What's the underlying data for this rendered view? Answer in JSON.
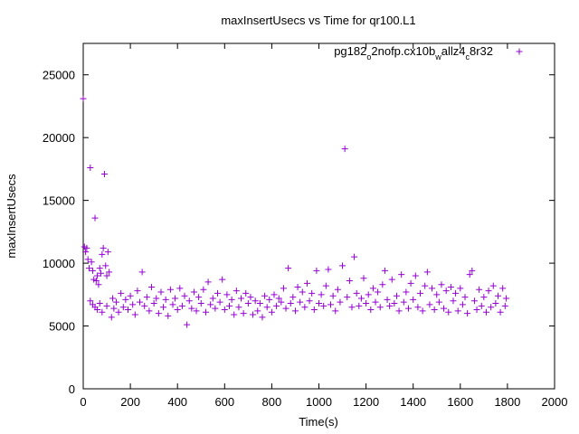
{
  "chart_data": {
    "type": "scatter",
    "title": "maxInsertUsecs vs Time for qr100.L1",
    "xlabel": "Time(s)",
    "ylabel": "maxInsertUsecs",
    "xlim": [
      0,
      2000
    ],
    "ylim": [
      0,
      27500
    ],
    "xticks": [
      0,
      200,
      400,
      600,
      800,
      1000,
      1200,
      1400,
      1600,
      1800,
      2000
    ],
    "yticks": [
      0,
      5000,
      10000,
      15000,
      20000,
      25000
    ],
    "legend_position": "top-right",
    "grid": false,
    "marker": "+",
    "series": [
      {
        "name": "pg182_o2nofp.cx10b_wallz4_c8r32",
        "legend_parts": [
          {
            "text": "pg182",
            "sub": false
          },
          {
            "text": "o",
            "sub": true
          },
          {
            "text": "2nofp.cx10b",
            "sub": false
          },
          {
            "text": "w",
            "sub": true
          },
          {
            "text": "allz4",
            "sub": false
          },
          {
            "text": "c",
            "sub": true
          },
          {
            "text": "8r32",
            "sub": false
          }
        ],
        "color": "#9400d3",
        "points": [
          [
            0,
            23100
          ],
          [
            5,
            11300
          ],
          [
            10,
            10900
          ],
          [
            15,
            11200
          ],
          [
            20,
            10300
          ],
          [
            25,
            9600
          ],
          [
            30,
            17600
          ],
          [
            35,
            10100
          ],
          [
            40,
            9400
          ],
          [
            45,
            8700
          ],
          [
            50,
            13600
          ],
          [
            55,
            8600
          ],
          [
            60,
            9000
          ],
          [
            65,
            8300
          ],
          [
            70,
            9600
          ],
          [
            75,
            9200
          ],
          [
            80,
            10700
          ],
          [
            85,
            11200
          ],
          [
            90,
            17100
          ],
          [
            95,
            9800
          ],
          [
            100,
            9000
          ],
          [
            105,
            10900
          ],
          [
            110,
            9300
          ],
          [
            30,
            7000
          ],
          [
            40,
            6700
          ],
          [
            50,
            6500
          ],
          [
            60,
            6300
          ],
          [
            70,
            6800
          ],
          [
            80,
            6100
          ],
          [
            100,
            6600
          ],
          [
            120,
            5700
          ],
          [
            125,
            7200
          ],
          [
            130,
            6400
          ],
          [
            140,
            6900
          ],
          [
            150,
            6100
          ],
          [
            160,
            7600
          ],
          [
            170,
            6500
          ],
          [
            180,
            7100
          ],
          [
            190,
            6300
          ],
          [
            200,
            7400
          ],
          [
            210,
            6700
          ],
          [
            220,
            5900
          ],
          [
            230,
            7800
          ],
          [
            240,
            6900
          ],
          [
            250,
            9300
          ],
          [
            260,
            6600
          ],
          [
            270,
            7300
          ],
          [
            280,
            6200
          ],
          [
            290,
            8100
          ],
          [
            300,
            6800
          ],
          [
            310,
            7200
          ],
          [
            320,
            6000
          ],
          [
            330,
            7700
          ],
          [
            340,
            6500
          ],
          [
            350,
            7100
          ],
          [
            360,
            5800
          ],
          [
            370,
            7900
          ],
          [
            380,
            6700
          ],
          [
            390,
            7200
          ],
          [
            400,
            6300
          ],
          [
            410,
            8000
          ],
          [
            420,
            6600
          ],
          [
            430,
            7400
          ],
          [
            440,
            5100
          ],
          [
            450,
            7000
          ],
          [
            460,
            6400
          ],
          [
            470,
            7700
          ],
          [
            480,
            6200
          ],
          [
            490,
            7300
          ],
          [
            500,
            6800
          ],
          [
            510,
            7900
          ],
          [
            520,
            6100
          ],
          [
            530,
            8500
          ],
          [
            540,
            6700
          ],
          [
            550,
            7200
          ],
          [
            560,
            6400
          ],
          [
            570,
            7600
          ],
          [
            580,
            6900
          ],
          [
            590,
            8700
          ],
          [
            600,
            6300
          ],
          [
            610,
            7500
          ],
          [
            620,
            6600
          ],
          [
            630,
            7100
          ],
          [
            640,
            5900
          ],
          [
            650,
            7800
          ],
          [
            660,
            6500
          ],
          [
            670,
            7200
          ],
          [
            680,
            6000
          ],
          [
            690,
            7600
          ],
          [
            700,
            6800
          ],
          [
            710,
            7300
          ],
          [
            720,
            5900
          ],
          [
            730,
            7000
          ],
          [
            740,
            6200
          ],
          [
            750,
            6800
          ],
          [
            760,
            5700
          ],
          [
            770,
            7400
          ],
          [
            780,
            6500
          ],
          [
            790,
            7100
          ],
          [
            800,
            6100
          ],
          [
            810,
            7500
          ],
          [
            820,
            6600
          ],
          [
            830,
            7200
          ],
          [
            840,
            6900
          ],
          [
            850,
            8000
          ],
          [
            860,
            6400
          ],
          [
            870,
            9600
          ],
          [
            880,
            6800
          ],
          [
            890,
            7300
          ],
          [
            900,
            6200
          ],
          [
            910,
            8100
          ],
          [
            920,
            6900
          ],
          [
            930,
            7700
          ],
          [
            940,
            6500
          ],
          [
            950,
            8400
          ],
          [
            960,
            7000
          ],
          [
            970,
            7600
          ],
          [
            980,
            6300
          ],
          [
            990,
            9400
          ],
          [
            1000,
            6800
          ],
          [
            1010,
            7500
          ],
          [
            1020,
            6600
          ],
          [
            1030,
            8200
          ],
          [
            1040,
            9500
          ],
          [
            1050,
            6700
          ],
          [
            1060,
            7400
          ],
          [
            1070,
            6200
          ],
          [
            1080,
            7900
          ],
          [
            1090,
            6900
          ],
          [
            1100,
            9800
          ],
          [
            1110,
            19100
          ],
          [
            1120,
            7300
          ],
          [
            1130,
            8600
          ],
          [
            1140,
            6500
          ],
          [
            1150,
            10500
          ],
          [
            1160,
            7600
          ],
          [
            1170,
            6600
          ],
          [
            1180,
            7200
          ],
          [
            1190,
            8800
          ],
          [
            1200,
            6800
          ],
          [
            1210,
            7500
          ],
          [
            1220,
            6300
          ],
          [
            1230,
            8000
          ],
          [
            1240,
            6900
          ],
          [
            1250,
            7700
          ],
          [
            1260,
            6500
          ],
          [
            1270,
            8300
          ],
          [
            1280,
            9400
          ],
          [
            1290,
            7100
          ],
          [
            1300,
            6600
          ],
          [
            1310,
            8700
          ],
          [
            1320,
            6800
          ],
          [
            1330,
            7400
          ],
          [
            1340,
            6200
          ],
          [
            1350,
            9100
          ],
          [
            1360,
            6900
          ],
          [
            1370,
            7700
          ],
          [
            1380,
            6400
          ],
          [
            1390,
            8400
          ],
          [
            1400,
            7100
          ],
          [
            1410,
            9000
          ],
          [
            1420,
            6500
          ],
          [
            1430,
            7600
          ],
          [
            1440,
            6200
          ],
          [
            1450,
            8200
          ],
          [
            1460,
            9300
          ],
          [
            1470,
            6700
          ],
          [
            1480,
            8000
          ],
          [
            1490,
            6300
          ],
          [
            1500,
            7500
          ],
          [
            1510,
            6900
          ],
          [
            1520,
            8300
          ],
          [
            1530,
            6400
          ],
          [
            1540,
            7800
          ],
          [
            1550,
            6100
          ],
          [
            1560,
            8100
          ],
          [
            1570,
            7000
          ],
          [
            1580,
            7600
          ],
          [
            1590,
            6200
          ],
          [
            1600,
            8000
          ],
          [
            1610,
            6700
          ],
          [
            1620,
            7300
          ],
          [
            1630,
            6000
          ],
          [
            1640,
            9100
          ],
          [
            1650,
            9400
          ],
          [
            1660,
            7000
          ],
          [
            1670,
            6300
          ],
          [
            1680,
            7900
          ],
          [
            1690,
            6600
          ],
          [
            1700,
            7300
          ],
          [
            1710,
            6100
          ],
          [
            1720,
            7800
          ],
          [
            1730,
            6500
          ],
          [
            1740,
            8200
          ],
          [
            1750,
            6800
          ],
          [
            1760,
            7400
          ],
          [
            1770,
            6100
          ],
          [
            1780,
            8000
          ],
          [
            1790,
            6600
          ],
          [
            1795,
            7200
          ]
        ]
      }
    ]
  }
}
